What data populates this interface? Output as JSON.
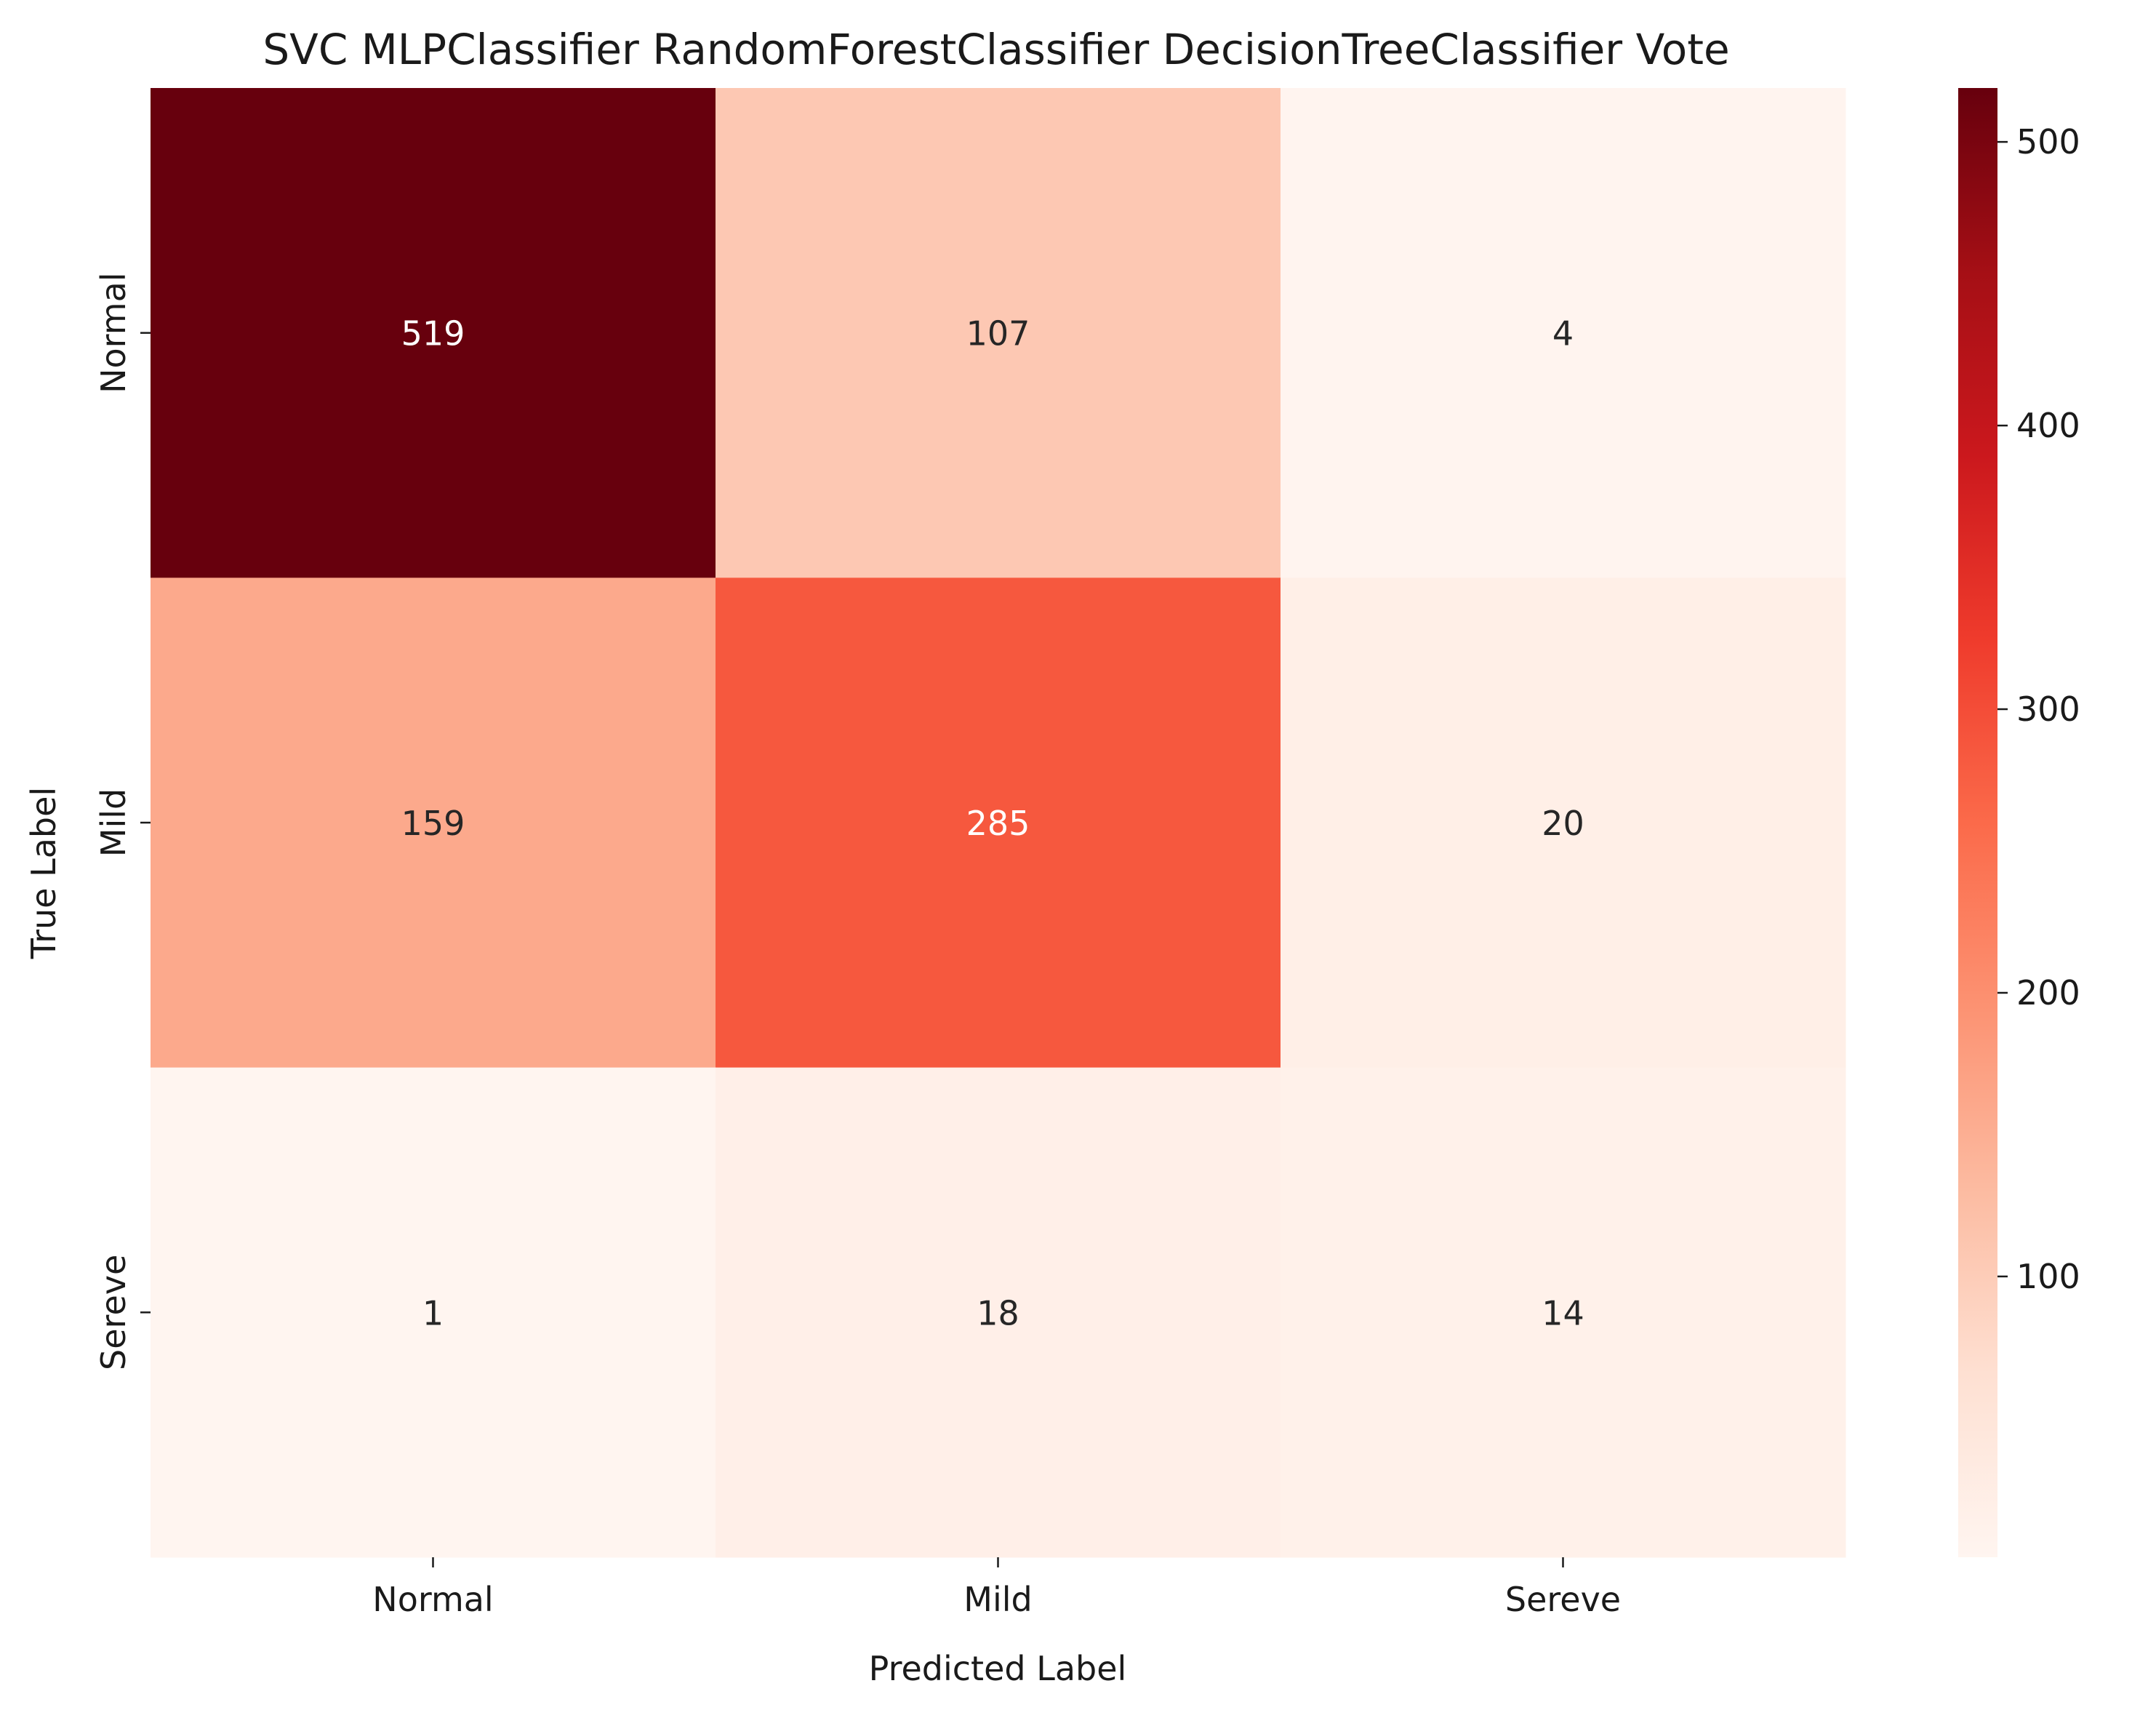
{
  "chart_data": {
    "type": "heatmap",
    "title": "SVC MLPClassifier RandomForestClassifier DecisionTreeClassifier Vote",
    "xlabel": "Predicted Label",
    "ylabel": "True Label",
    "x_categories": [
      "Normal",
      "Mild",
      "Sereve"
    ],
    "y_categories": [
      "Normal",
      "Mild",
      "Sereve"
    ],
    "values": [
      [
        519,
        107,
        4
      ],
      [
        159,
        285,
        20
      ],
      [
        1,
        18,
        14
      ]
    ],
    "colormap": "Reds",
    "colorbar": {
      "range": [
        1,
        519
      ],
      "ticks": [
        "100",
        "200",
        "300",
        "400",
        "500"
      ]
    },
    "grid": false
  }
}
